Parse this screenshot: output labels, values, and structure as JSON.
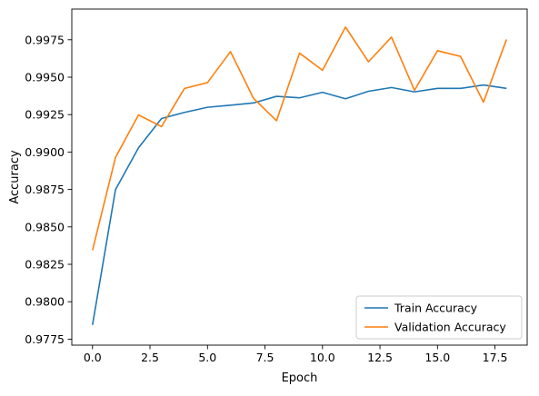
{
  "chart_data": {
    "type": "line",
    "title": "",
    "xlabel": "Epoch",
    "ylabel": "Accuracy",
    "xlim": [
      -0.9,
      18.9
    ],
    "ylim": [
      0.9771,
      0.99955
    ],
    "x_ticks": [
      0.0,
      2.5,
      5.0,
      7.5,
      10.0,
      12.5,
      15.0,
      17.5
    ],
    "x_tick_labels": [
      "0.0",
      "2.5",
      "5.0",
      "7.5",
      "10.0",
      "12.5",
      "15.0",
      "17.5"
    ],
    "y_ticks": [
      0.9775,
      0.98,
      0.9825,
      0.985,
      0.9875,
      0.99,
      0.9925,
      0.995,
      0.9975
    ],
    "y_tick_labels": [
      "0.9775",
      "0.9800",
      "0.9825",
      "0.9850",
      "0.9875",
      "0.9900",
      "0.9925",
      "0.9950",
      "0.9975"
    ],
    "grid": false,
    "legend_position": "bottom-right",
    "x": [
      0,
      1,
      2,
      3,
      4,
      5,
      6,
      7,
      8,
      9,
      10,
      11,
      12,
      13,
      14,
      15,
      16,
      17,
      18
    ],
    "series": [
      {
        "name": "Train Accuracy",
        "color": "#1f77b4",
        "values": [
          0.97845,
          0.98749,
          0.99028,
          0.99224,
          0.99265,
          0.99299,
          0.99313,
          0.99328,
          0.99372,
          0.99362,
          0.99399,
          0.99356,
          0.99406,
          0.99431,
          0.99402,
          0.99425,
          0.99425,
          0.99448,
          0.99425
        ]
      },
      {
        "name": "Validation Accuracy",
        "color": "#ff7f0e",
        "values": [
          0.98344,
          0.98964,
          0.99248,
          0.9917,
          0.99425,
          0.99464,
          0.99671,
          0.99359,
          0.99209,
          0.99661,
          0.99546,
          0.99835,
          0.99603,
          0.99768,
          0.99412,
          0.99677,
          0.99639,
          0.99333,
          0.99752
        ]
      }
    ]
  }
}
